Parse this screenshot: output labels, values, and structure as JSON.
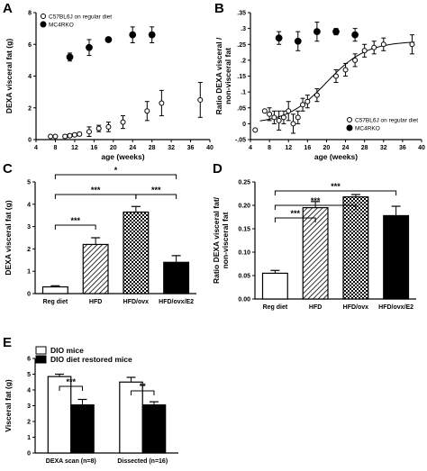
{
  "chart_data": [
    {
      "panel": "A",
      "type": "scatter",
      "xlabel": "age (weeks)",
      "ylabel": "DEXA visceral fat (g)",
      "xlim": [
        4,
        40
      ],
      "ylim": [
        0,
        8
      ],
      "xticks": [
        4,
        8,
        12,
        16,
        20,
        24,
        28,
        32,
        36,
        40
      ],
      "yticks": [
        0,
        2,
        4,
        6,
        8
      ],
      "legend_position": "top-left",
      "series": [
        {
          "name": "C57BL6J on regular diet",
          "marker": "open",
          "x": [
            7,
            8,
            10,
            11,
            12,
            13,
            15,
            17,
            19,
            22,
            27,
            30,
            38
          ],
          "y": [
            0.2,
            0.2,
            0.2,
            0.25,
            0.3,
            0.35,
            0.5,
            0.7,
            0.8,
            1.1,
            1.8,
            2.3,
            2.5
          ],
          "err": [
            0.05,
            0.05,
            0.1,
            0.1,
            0.1,
            0.1,
            0.3,
            0.2,
            0.3,
            0.4,
            0.6,
            0.8,
            1.1
          ]
        },
        {
          "name": "MC4RKO",
          "marker": "filled",
          "x": [
            11,
            15,
            19,
            24,
            28
          ],
          "y": [
            5.2,
            5.8,
            6.3,
            6.6,
            6.6
          ],
          "err": [
            0.25,
            0.5,
            0.1,
            0.5,
            0.5
          ]
        }
      ]
    },
    {
      "panel": "B",
      "type": "scatter",
      "xlabel": "age (weeks)",
      "ylabel": "Ratio DEXA visceral /\nnon-visceral fat",
      "xlim": [
        4,
        40
      ],
      "ylim": [
        -0.05,
        0.35
      ],
      "xticks": [
        4,
        8,
        12,
        16,
        20,
        24,
        28,
        32,
        36,
        40
      ],
      "yticks": [
        -0.05,
        0.0,
        0.05,
        0.1,
        0.15,
        0.2,
        0.25,
        0.3,
        0.35
      ],
      "legend_position": "bottom-right",
      "fit_curve": true,
      "series": [
        {
          "name": "C57BL6J on regular diet",
          "marker": "open",
          "x": [
            5,
            7,
            8,
            9,
            10,
            11,
            12,
            13,
            14,
            15,
            16,
            18,
            22,
            24,
            26,
            28,
            30,
            32,
            38
          ],
          "y": [
            -0.02,
            0.04,
            0.03,
            0.02,
            0.01,
            0.02,
            0.04,
            0.0,
            0.02,
            0.06,
            0.07,
            0.09,
            0.15,
            0.17,
            0.2,
            0.23,
            0.24,
            0.25,
            0.25
          ],
          "err": [
            0.0,
            0.0,
            0.02,
            0.02,
            0.03,
            0.02,
            0.03,
            0.03,
            0.02,
            0.02,
            0.02,
            0.02,
            0.02,
            0.02,
            0.02,
            0.02,
            0.02,
            0.02,
            0.03
          ]
        },
        {
          "name": "MC4RKO",
          "marker": "filled",
          "x": [
            10,
            14,
            18,
            22,
            26
          ],
          "y": [
            0.27,
            0.26,
            0.29,
            0.29,
            0.28
          ],
          "err": [
            0.02,
            0.03,
            0.03,
            0.01,
            0.02
          ]
        }
      ]
    },
    {
      "panel": "C",
      "type": "bar",
      "ylabel": "DEXA visceral fat (g)",
      "ylim": [
        0,
        5
      ],
      "yticks": [
        0,
        1,
        2,
        3,
        4,
        5
      ],
      "categories": [
        "Reg diet",
        "HFD",
        "HFD/ovx",
        "HFD/ovx/E2"
      ],
      "values": [
        0.3,
        2.2,
        3.65,
        1.4
      ],
      "errors": [
        0.05,
        0.3,
        0.25,
        0.3
      ],
      "patterns": [
        "white",
        "hatched",
        "checkered",
        "black"
      ],
      "significance": [
        {
          "from": 0,
          "to": 1,
          "label": "***"
        },
        {
          "from": 0,
          "to": 2,
          "label": "***"
        },
        {
          "from": 0,
          "to": 3,
          "label": "*"
        },
        {
          "from": 2,
          "to": 3,
          "label": "***"
        }
      ]
    },
    {
      "panel": "D",
      "type": "bar",
      "ylabel": "Ratio DEXA visceral fat/\nnon-visceral fat",
      "ylim": [
        0,
        0.25
      ],
      "yticks": [
        0.0,
        0.05,
        0.1,
        0.15,
        0.2,
        0.25
      ],
      "categories": [
        "Reg diet",
        "HFD",
        "HFD/ovx",
        "HFD/ovx/E2"
      ],
      "values": [
        0.055,
        0.195,
        0.218,
        0.178
      ],
      "errors": [
        0.006,
        0.013,
        0.005,
        0.02
      ],
      "patterns": [
        "white",
        "hatched",
        "checkered",
        "black"
      ],
      "significance": [
        {
          "from": 0,
          "to": 1,
          "label": "***"
        },
        {
          "from": 0,
          "to": 2,
          "label": "***"
        },
        {
          "from": 0,
          "to": 3,
          "label": "***"
        }
      ]
    },
    {
      "panel": "E",
      "type": "bar",
      "ylabel": "Visceral fat (g)",
      "ylim": [
        0,
        6
      ],
      "yticks": [
        0,
        1,
        2,
        3,
        4,
        5,
        6
      ],
      "categories": [
        "DEXA scan (n=8)",
        "Dissected (n=16)"
      ],
      "legend_position": "top-left",
      "series": [
        {
          "name": "DIO mice",
          "color": "#ffffff",
          "values": [
            4.85,
            4.5
          ],
          "errors": [
            0.15,
            0.3
          ]
        },
        {
          "name": "DIO diet restored mice",
          "color": "#000000",
          "values": [
            3.05,
            3.05
          ],
          "errors": [
            0.35,
            0.2
          ]
        }
      ],
      "significance": [
        {
          "group": 0,
          "label": "***"
        },
        {
          "group": 1,
          "label": "**"
        }
      ]
    }
  ],
  "panel_letters": [
    "A",
    "B",
    "C",
    "D",
    "E"
  ]
}
